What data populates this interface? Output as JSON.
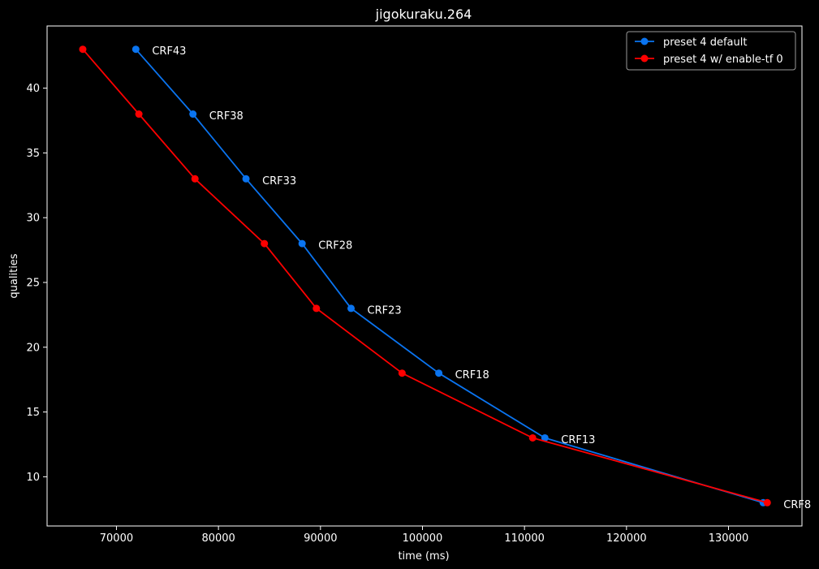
{
  "chart_data": {
    "type": "line",
    "title": "jigokuraku.264",
    "xlabel": "time (ms)",
    "ylabel": "qualities",
    "xlim": [
      63200,
      137200
    ],
    "ylim": [
      6.2,
      44.8
    ],
    "xticks": [
      70000,
      80000,
      90000,
      100000,
      110000,
      120000,
      130000
    ],
    "yticks": [
      10,
      15,
      20,
      25,
      30,
      35,
      40
    ],
    "grid": false,
    "legend_position": "top-right",
    "point_labels": [
      "CRF43",
      "CRF38",
      "CRF33",
      "CRF28",
      "CRF23",
      "CRF18",
      "CRF13",
      "CRF8"
    ],
    "series": [
      {
        "name": "preset 4 default",
        "color": "#0a74f0",
        "x": [
          71900,
          77500,
          82700,
          88200,
          93000,
          101600,
          112000,
          133400
        ],
        "y": [
          43,
          38,
          33,
          28,
          23,
          18,
          13,
          8
        ]
      },
      {
        "name": "preset 4 w/ enable-tf 0",
        "color": "#ff0000",
        "x": [
          66700,
          72200,
          77700,
          84500,
          89600,
          98000,
          110800,
          133800
        ],
        "y": [
          43,
          38,
          33,
          28,
          23,
          18,
          13,
          8
        ]
      }
    ]
  }
}
